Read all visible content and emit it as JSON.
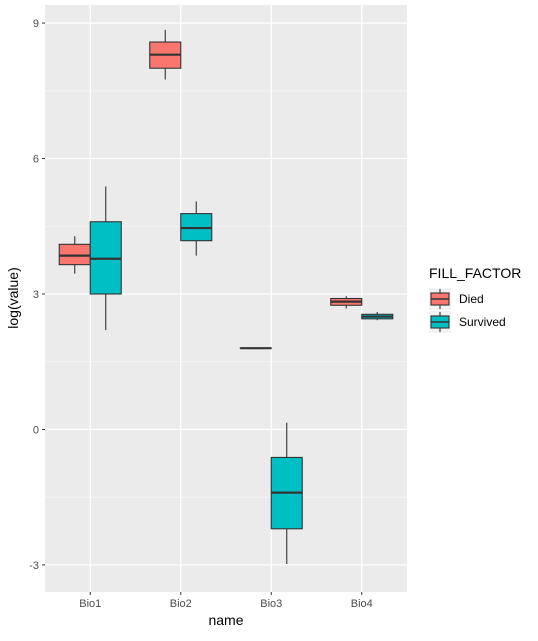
{
  "chart_data": {
    "type": "boxplot",
    "xlabel": "name",
    "ylabel": "log(value)",
    "categories": [
      "Bio1",
      "Bio2",
      "Bio3",
      "Bio4"
    ],
    "ylim": [
      -3.6,
      9.4
    ],
    "yticks": [
      -3,
      0,
      3,
      6,
      9
    ],
    "ytick_labels": [
      "-3",
      "0",
      "3",
      "6",
      "9"
    ],
    "grid": true,
    "legend": {
      "title": "FILL_FACTOR",
      "placement": "right",
      "entries": [
        "Died",
        "Survived"
      ]
    },
    "series": [
      {
        "name": "Died",
        "color": "#F8766D",
        "boxes": [
          {
            "category": "Bio1",
            "min": 3.45,
            "q1": 3.65,
            "median": 3.85,
            "q3": 4.1,
            "max": 4.28
          },
          {
            "category": "Bio2",
            "min": 7.75,
            "q1": 8.0,
            "median": 8.3,
            "q3": 8.58,
            "max": 8.85
          },
          {
            "category": "Bio3",
            "min": 1.8,
            "q1": 1.8,
            "median": 1.8,
            "q3": 1.8,
            "max": 1.8
          },
          {
            "category": "Bio4",
            "min": 2.68,
            "q1": 2.75,
            "median": 2.83,
            "q3": 2.9,
            "max": 2.95
          }
        ]
      },
      {
        "name": "Survived",
        "color": "#00BFC4",
        "boxes": [
          {
            "category": "Bio1",
            "min": 2.2,
            "q1": 3.0,
            "median": 3.78,
            "q3": 4.6,
            "max": 5.38
          },
          {
            "category": "Bio2",
            "min": 3.85,
            "q1": 4.18,
            "median": 4.46,
            "q3": 4.78,
            "max": 5.05
          },
          {
            "category": "Bio3",
            "min": -2.98,
            "q1": -2.2,
            "median": -1.4,
            "q3": -0.62,
            "max": 0.15
          },
          {
            "category": "Bio4",
            "min": 2.42,
            "q1": 2.45,
            "median": 2.5,
            "q3": 2.55,
            "max": 2.6
          }
        ]
      }
    ]
  }
}
